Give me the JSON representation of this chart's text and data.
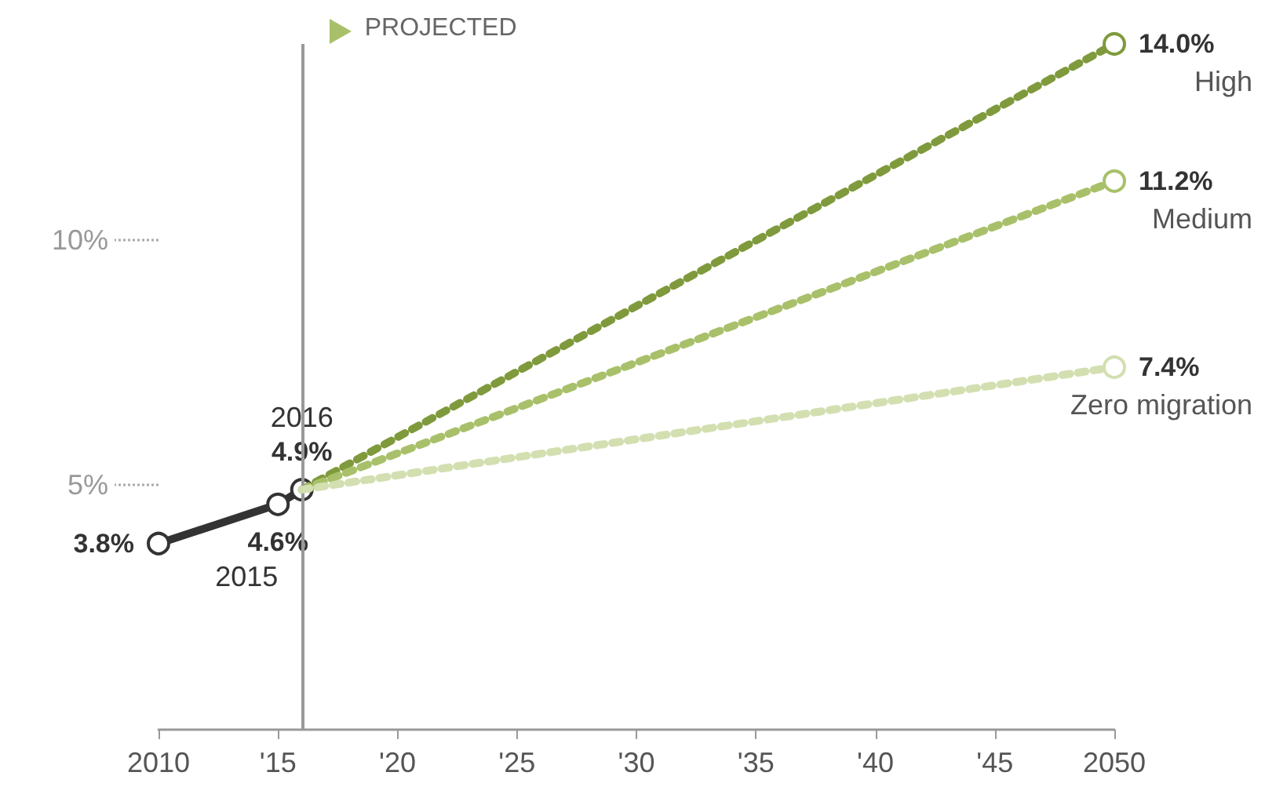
{
  "chart_data": {
    "type": "line",
    "x": [
      2010,
      2015,
      2016,
      2050
    ],
    "series": [
      {
        "color": "#333333",
        "values": [
          3.8,
          4.6,
          4.9,
          null
        ],
        "value_labels": [
          "3.8%",
          "4.6%",
          "4.9%",
          null
        ],
        "line_style": "solid"
      },
      {
        "name": "High",
        "color": "#7f9a3c",
        "values": [
          null,
          null,
          4.9,
          14.0
        ],
        "value_labels": [
          null,
          null,
          null,
          "14.0%"
        ],
        "line_style": "dotted"
      },
      {
        "name": "Medium",
        "color": "#a9c06a",
        "values": [
          null,
          null,
          4.9,
          11.2
        ],
        "value_labels": [
          null,
          null,
          null,
          "11.2%"
        ],
        "line_style": "dotted"
      },
      {
        "name": "Zero migration",
        "color": "#d3dfb0",
        "values": [
          null,
          null,
          4.9,
          7.4
        ],
        "value_labels": [
          null,
          null,
          null,
          "7.4%"
        ],
        "line_style": "dotted"
      }
    ],
    "xlim": [
      2010,
      2050
    ],
    "xticks": [
      2010,
      {
        "value": 2015,
        "label": "'15"
      },
      {
        "value": 2020,
        "label": "'20"
      },
      {
        "value": 2025,
        "label": "'25"
      },
      {
        "value": 2030,
        "label": "'30"
      },
      {
        "value": 2035,
        "label": "'35"
      },
      {
        "value": 2040,
        "label": "'40"
      },
      {
        "value": 2045,
        "label": "'45"
      },
      2050
    ],
    "ylim": [
      0,
      14
    ],
    "yticks": [
      {
        "value": 5,
        "label": "5%"
      },
      {
        "value": 10,
        "label": "10%"
      }
    ],
    "ref_lines": [
      {
        "axis": "x",
        "value": 2016,
        "label": "PROJECTED",
        "color": "#999999"
      }
    ],
    "annotations": [
      {
        "text": "2016",
        "x": 2016,
        "y": 4.9
      },
      {
        "text": "2015",
        "x": 2015,
        "y": 4.6
      }
    ],
    "marker": "circle",
    "grid": false,
    "legend": false
  }
}
